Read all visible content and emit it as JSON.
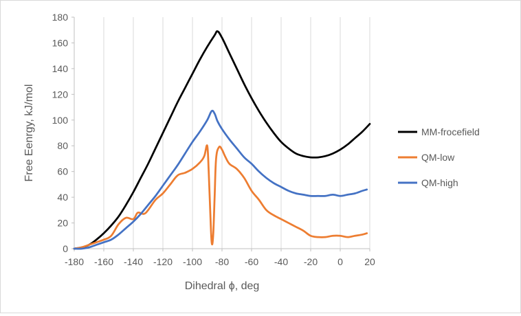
{
  "chart_data": {
    "type": "line",
    "title": "",
    "xlabel": "Dihedral ϕ, deg",
    "ylabel": "Free Eenrgy, kJ/mol",
    "xlim": [
      -180,
      20
    ],
    "ylim": [
      0,
      180
    ],
    "xticks": [
      -180,
      -160,
      -140,
      -120,
      -100,
      -80,
      -60,
      -40,
      -20,
      0,
      20
    ],
    "yticks": [
      0,
      20,
      40,
      60,
      80,
      100,
      120,
      140,
      160,
      180
    ],
    "grid": "vertical",
    "legend_position": "right",
    "series": [
      {
        "name": "MM-frocefield",
        "color": "#000000",
        "x": [
          -180,
          -175,
          -170,
          -165,
          -160,
          -155,
          -150,
          -145,
          -140,
          -135,
          -130,
          -125,
          -120,
          -115,
          -110,
          -105,
          -100,
          -95,
          -90,
          -85,
          -83,
          -80,
          -75,
          -70,
          -65,
          -60,
          -55,
          -50,
          -45,
          -40,
          -35,
          -30,
          -25,
          -20,
          -15,
          -10,
          -5,
          0,
          5,
          10,
          15,
          20
        ],
        "y": [
          0,
          1,
          3,
          7,
          12,
          18,
          25,
          34,
          44,
          55,
          66,
          78,
          90,
          102,
          114,
          125,
          136,
          147,
          157,
          166,
          169,
          164,
          152,
          140,
          128,
          117,
          107,
          98,
          90,
          83,
          78,
          74,
          72,
          71,
          71,
          72,
          74,
          77,
          81,
          86,
          91,
          97
        ]
      },
      {
        "name": "QM-low",
        "color": "#ed7d31",
        "x": [
          -180,
          -175,
          -170,
          -165,
          -160,
          -155,
          -150,
          -145,
          -140,
          -137,
          -133,
          -130,
          -125,
          -120,
          -115,
          -110,
          -105,
          -100,
          -95,
          -92,
          -90,
          -89,
          -88,
          -87,
          -86,
          -85,
          -84,
          -82,
          -80,
          -78,
          -75,
          -70,
          -65,
          -60,
          -55,
          -50,
          -45,
          -40,
          -35,
          -30,
          -25,
          -20,
          -15,
          -10,
          -5,
          0,
          5,
          10,
          15,
          18
        ],
        "y": [
          0,
          1,
          3,
          5,
          7,
          10,
          19,
          24,
          23,
          28,
          27,
          30,
          38,
          43,
          50,
          57,
          59,
          62,
          67,
          72,
          80,
          60,
          30,
          5,
          10,
          40,
          70,
          79,
          77,
          72,
          66,
          62,
          55,
          45,
          38,
          30,
          26,
          23,
          20,
          17,
          14,
          10,
          9,
          9,
          10,
          10,
          9,
          10,
          11,
          12
        ]
      },
      {
        "name": "QM-high",
        "color": "#4472c4",
        "x": [
          -180,
          -175,
          -170,
          -165,
          -160,
          -155,
          -150,
          -145,
          -140,
          -135,
          -130,
          -125,
          -120,
          -115,
          -110,
          -105,
          -100,
          -95,
          -90,
          -87,
          -85,
          -83,
          -80,
          -75,
          -70,
          -65,
          -60,
          -55,
          -50,
          -45,
          -40,
          -35,
          -30,
          -25,
          -20,
          -15,
          -10,
          -5,
          0,
          5,
          10,
          15,
          18
        ],
        "y": [
          0,
          0,
          1,
          3,
          5,
          7,
          11,
          16,
          21,
          27,
          34,
          41,
          49,
          57,
          65,
          74,
          83,
          91,
          100,
          107,
          105,
          99,
          93,
          85,
          78,
          71,
          66,
          60,
          55,
          51,
          48,
          45,
          43,
          42,
          41,
          41,
          41,
          42,
          41,
          42,
          43,
          45,
          46
        ]
      }
    ]
  }
}
